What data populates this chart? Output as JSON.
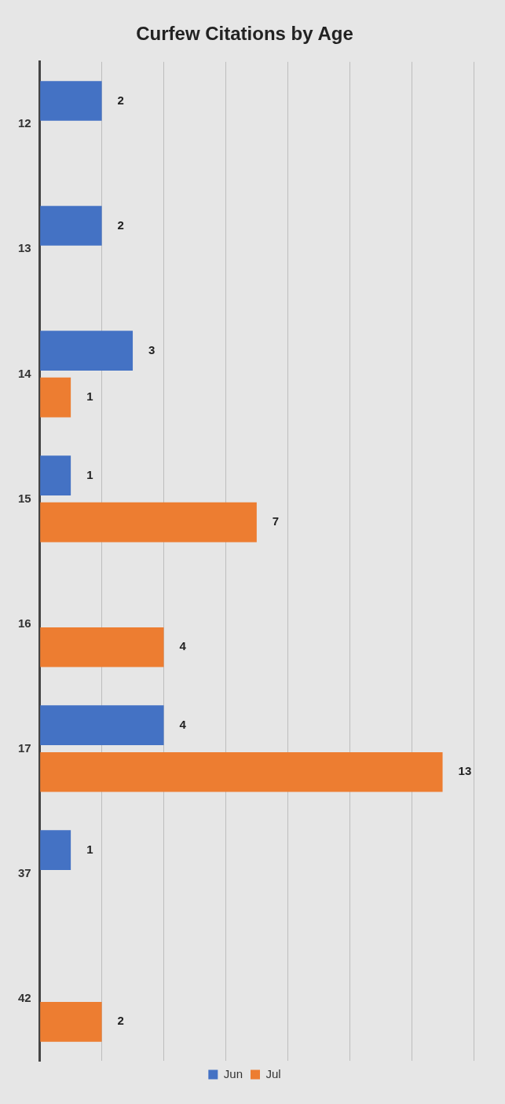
{
  "chart_data": {
    "type": "bar",
    "title": "Curfew Citations by Age",
    "orientation": "horizontal",
    "categories": [
      "12",
      "13",
      "14",
      "15",
      "16",
      "17",
      "37",
      "42"
    ],
    "series": [
      {
        "name": "Jun",
        "color": "#4472c4",
        "values": [
          2,
          2,
          3,
          1,
          null,
          4,
          1,
          null
        ]
      },
      {
        "name": "Jul",
        "color": "#ed7d31",
        "values": [
          null,
          null,
          1,
          7,
          4,
          13,
          null,
          2
        ]
      }
    ],
    "xlim": [
      0,
      14
    ],
    "xticks": [
      {
        "value": 0,
        "label": null
      },
      {
        "value": 2,
        "label": null
      },
      {
        "value": 4,
        "label": null
      },
      {
        "value": 6,
        "label": null
      },
      {
        "value": 8,
        "label": null
      },
      {
        "value": 10,
        "label": null
      },
      {
        "value": 12,
        "label": null
      },
      {
        "value": 14,
        "label": null
      }
    ],
    "tick_labels": "y",
    "grid": "x",
    "legend": "bottom",
    "data_labels": true
  }
}
